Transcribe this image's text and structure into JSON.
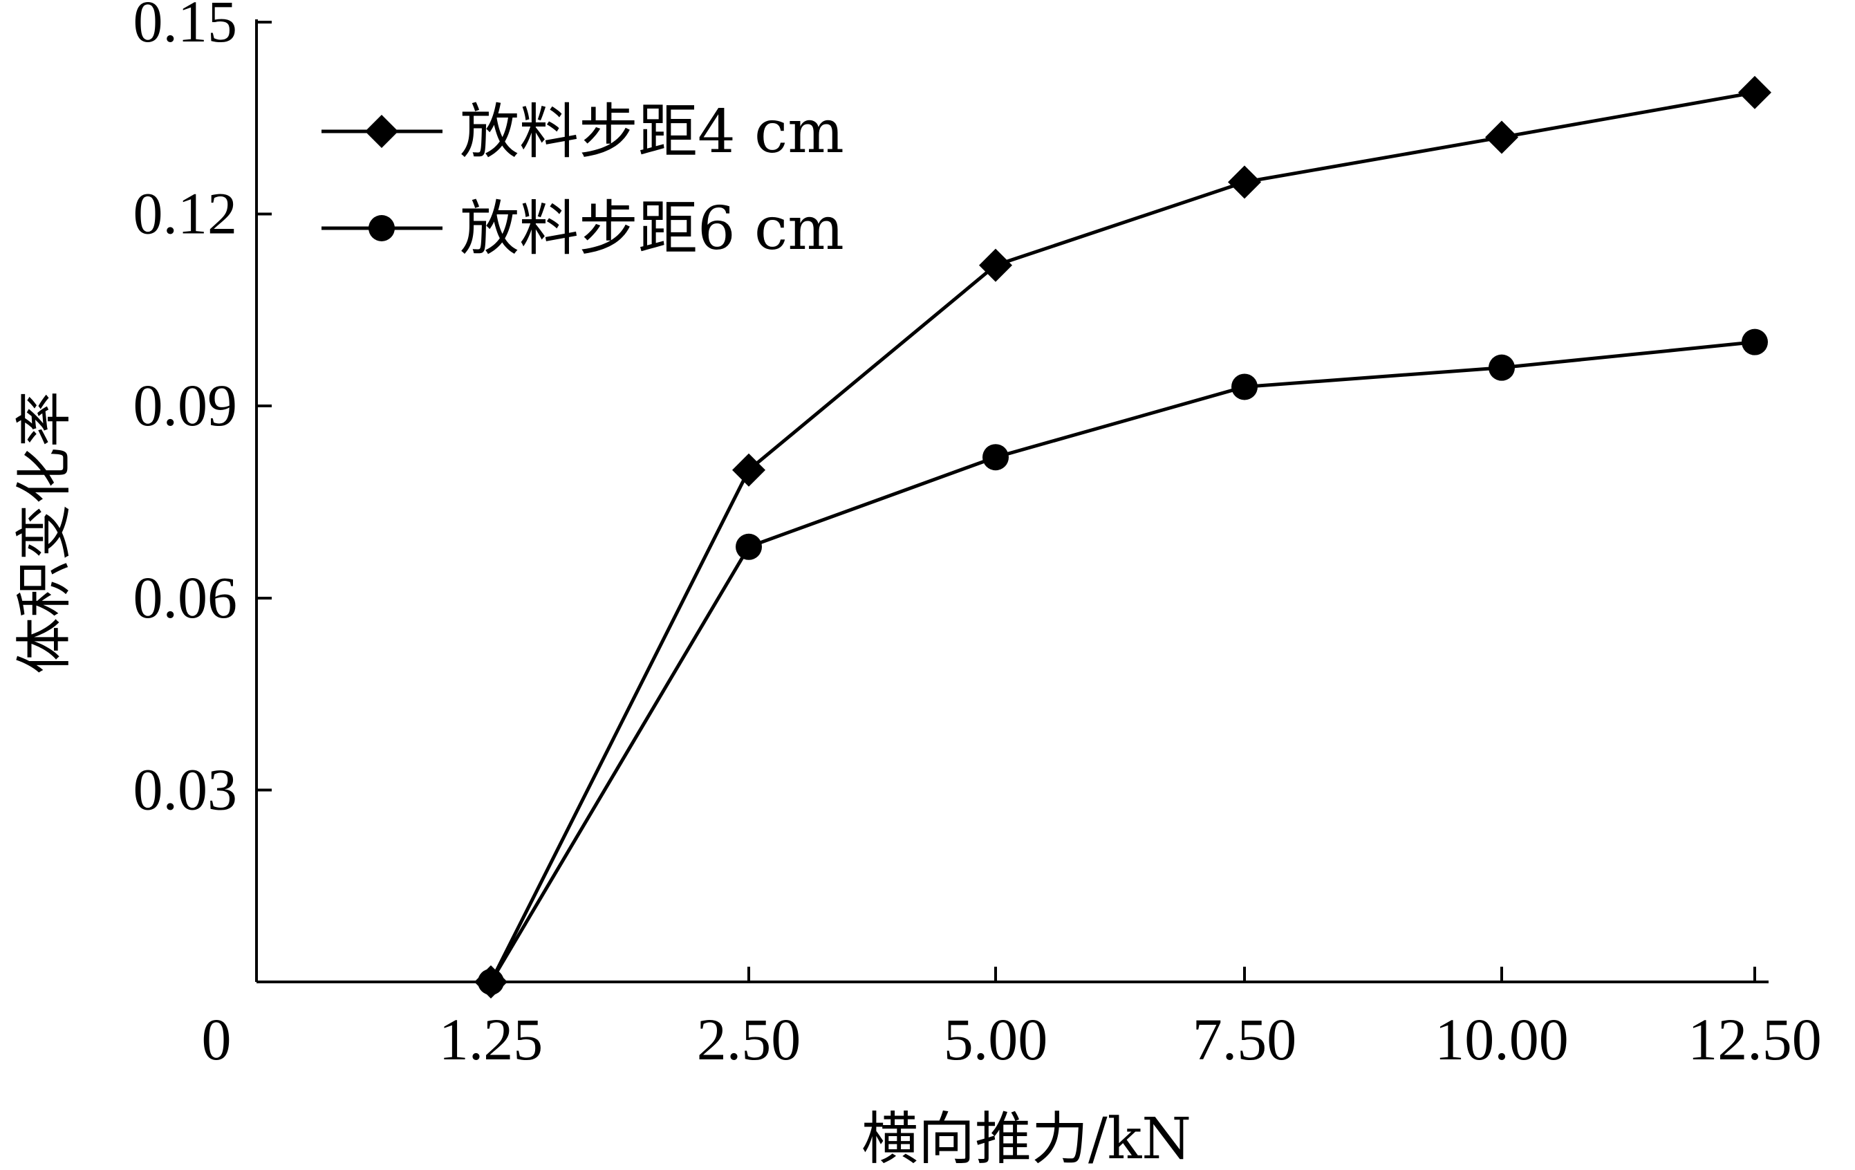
{
  "chart_data": {
    "type": "line",
    "title": "",
    "xlabel": "横向推力/kN",
    "ylabel": "体积变化率",
    "categories": [
      "1.25",
      "2.50",
      "5.00",
      "7.50",
      "10.00",
      "12.50"
    ],
    "y_ticks": [
      "0.03",
      "0.06",
      "0.09",
      "0.12",
      "0.15"
    ],
    "origin_label": "0",
    "ylim": [
      0,
      0.15
    ],
    "grid": false,
    "legend_position": "top-left",
    "series": [
      {
        "name": "放料步距4 cm",
        "marker": "diamond",
        "values": [
          0.0,
          0.08,
          0.112,
          0.125,
          0.132,
          0.139
        ]
      },
      {
        "name": "放料步距6 cm",
        "marker": "circle",
        "values": [
          0.0,
          0.068,
          0.082,
          0.093,
          0.096,
          0.1
        ]
      }
    ],
    "colors": {
      "axis": "#000000",
      "series": "#000000"
    }
  }
}
